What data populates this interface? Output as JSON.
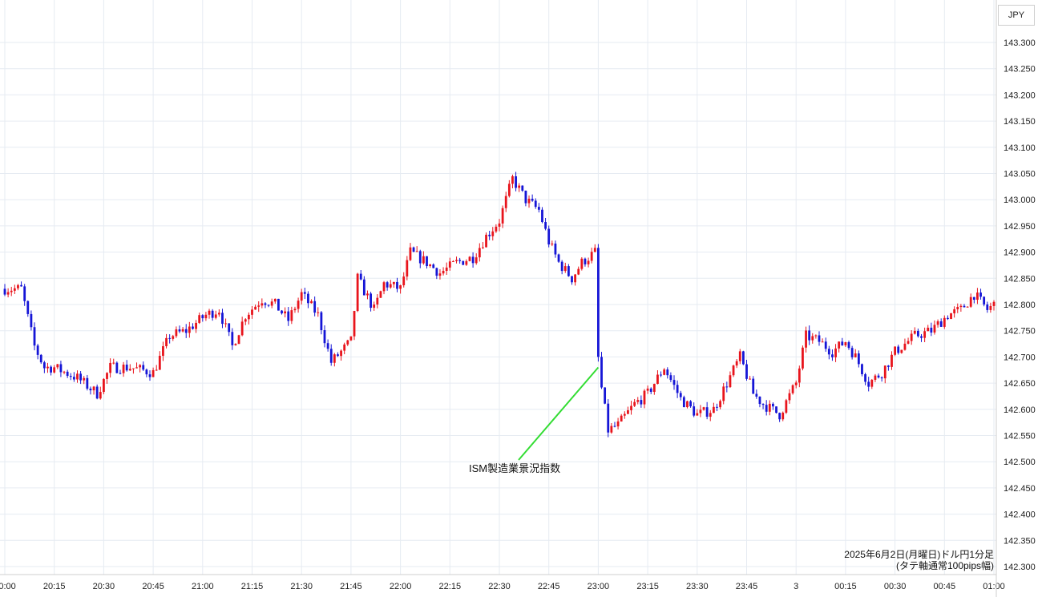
{
  "currency_label": "JPY",
  "caption": {
    "line1": "2025年6月2日(月曜日)ドル円1分足",
    "line2": "(タテ軸通常100pips幅)"
  },
  "annotation": {
    "text": "ISM製造業景況指数"
  },
  "colors": {
    "up": "#e8141c",
    "down": "#1515d6",
    "grid": "#e6ebf2",
    "annotation_line": "#33dd33"
  },
  "chart_data": {
    "type": "candlestick",
    "title": "",
    "xlabel": "",
    "ylabel": "",
    "ylim": [
      142.28,
      143.33
    ],
    "grid": true,
    "y_ticks": [
      "143.300",
      "143.250",
      "143.200",
      "143.150",
      "143.100",
      "143.050",
      "143.000",
      "142.950",
      "142.900",
      "142.850",
      "142.800",
      "142.750",
      "142.700",
      "142.650",
      "142.600",
      "142.550",
      "142.500",
      "142.450",
      "142.400",
      "142.350",
      "142.300"
    ],
    "x_ticks": [
      "20:00",
      "20:15",
      "20:30",
      "20:45",
      "21:00",
      "21:15",
      "21:30",
      "21:45",
      "22:00",
      "22:15",
      "22:30",
      "22:45",
      "23:00",
      "23:15",
      "23:30",
      "23:45",
      "3",
      "00:15",
      "00:30",
      "00:45",
      "01:00"
    ],
    "annotations": [
      {
        "text": "ISM製造業景況指数",
        "time": "23:00",
        "price": 142.68
      }
    ],
    "series": [
      {
        "keypoints": [
          [
            "20:00",
            142.83
          ],
          [
            "20:05",
            142.83
          ],
          [
            "20:09",
            142.72
          ],
          [
            "20:12",
            142.68
          ],
          [
            "20:15",
            142.68
          ],
          [
            "20:22",
            142.66
          ],
          [
            "20:28",
            142.63
          ],
          [
            "20:32",
            142.68
          ],
          [
            "20:38",
            142.68
          ],
          [
            "20:45",
            142.67
          ],
          [
            "20:50",
            142.74
          ],
          [
            "20:55",
            142.75
          ],
          [
            "21:01",
            142.78
          ],
          [
            "21:05",
            142.79
          ],
          [
            "21:09",
            142.72
          ],
          [
            "21:13",
            142.78
          ],
          [
            "21:18",
            142.81
          ],
          [
            "21:22",
            142.8
          ],
          [
            "21:26",
            142.77
          ],
          [
            "21:30",
            142.82
          ],
          [
            "21:35",
            142.78
          ],
          [
            "21:39",
            142.69
          ],
          [
            "21:45",
            142.73
          ],
          [
            "21:47",
            142.85
          ],
          [
            "21:52",
            142.79
          ],
          [
            "21:55",
            142.84
          ],
          [
            "22:00",
            142.83
          ],
          [
            "22:03",
            142.9
          ],
          [
            "22:08",
            142.88
          ],
          [
            "22:12",
            142.86
          ],
          [
            "22:17",
            142.88
          ],
          [
            "22:22",
            142.89
          ],
          [
            "22:26",
            142.93
          ],
          [
            "22:30",
            142.96
          ],
          [
            "22:34",
            143.04
          ],
          [
            "22:38",
            143.0
          ],
          [
            "22:42",
            142.98
          ],
          [
            "22:45",
            142.92
          ],
          [
            "22:48",
            142.88
          ],
          [
            "22:52",
            142.85
          ],
          [
            "22:55",
            142.88
          ],
          [
            "22:59",
            142.9
          ],
          [
            "23:00",
            142.7
          ],
          [
            "23:01",
            142.64
          ],
          [
            "23:03",
            142.56
          ],
          [
            "23:06",
            142.57
          ],
          [
            "23:11",
            142.61
          ],
          [
            "23:15",
            142.63
          ],
          [
            "23:20",
            142.68
          ],
          [
            "23:25",
            142.62
          ],
          [
            "23:30",
            142.59
          ],
          [
            "23:35",
            142.6
          ],
          [
            "23:39",
            142.65
          ],
          [
            "23:43",
            142.7
          ],
          [
            "23:47",
            142.63
          ],
          [
            "23:50",
            142.61
          ],
          [
            "23:55",
            142.59
          ],
          [
            "00:00",
            142.65
          ],
          [
            "00:03",
            142.74
          ],
          [
            "00:07",
            142.73
          ],
          [
            "00:11",
            142.71
          ],
          [
            "00:15",
            142.73
          ],
          [
            "00:18",
            142.7
          ],
          [
            "00:22",
            142.65
          ],
          [
            "00:26",
            142.67
          ],
          [
            "00:30",
            142.71
          ],
          [
            "00:36",
            142.74
          ],
          [
            "00:41",
            142.75
          ],
          [
            "00:46",
            142.78
          ],
          [
            "00:50",
            142.79
          ],
          [
            "00:54",
            142.82
          ],
          [
            "00:58",
            142.79
          ],
          [
            "01:00",
            142.8
          ]
        ]
      }
    ]
  }
}
